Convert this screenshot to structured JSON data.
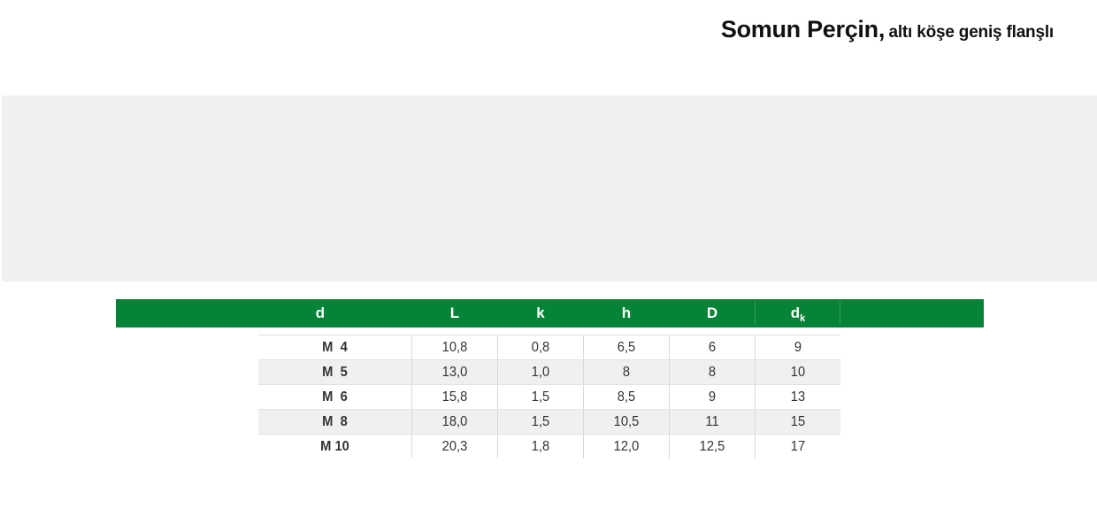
{
  "title": {
    "main": "Somun Perçin,",
    "sub": "altı köşe geniş flanşlı"
  },
  "colors": {
    "header_bar": "#058337",
    "image_placeholder": "#eff0f1",
    "row_alt": "#f0f0f0"
  },
  "table": {
    "headers": [
      {
        "text": "d",
        "sub": ""
      },
      {
        "text": "L",
        "sub": ""
      },
      {
        "text": "k",
        "sub": ""
      },
      {
        "text": "h",
        "sub": ""
      },
      {
        "text": "D",
        "sub": ""
      },
      {
        "text": "d",
        "sub": "k"
      }
    ],
    "rows": [
      [
        "M  4",
        "10,8",
        "0,8",
        "6,5",
        "6",
        "9"
      ],
      [
        "M  5",
        "13,0",
        "1,0",
        "8",
        "8",
        "10"
      ],
      [
        "M  6",
        "15,8",
        "1,5",
        "8,5",
        "9",
        "13"
      ],
      [
        "M  8",
        "18,0",
        "1,5",
        "10,5",
        "11",
        "15"
      ],
      [
        "M 10",
        "20,3",
        "1,8",
        "12,0",
        "12,5",
        "17"
      ]
    ]
  }
}
